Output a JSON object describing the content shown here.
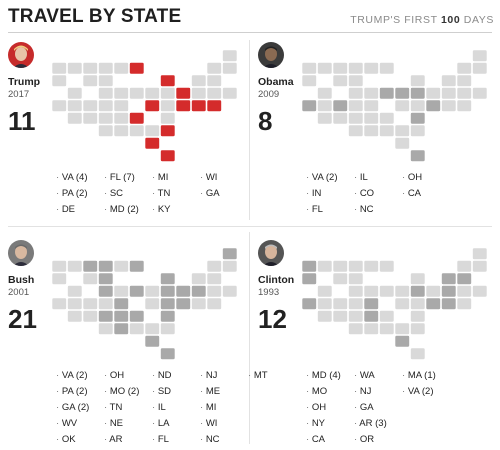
{
  "header": {
    "title": "TRAVEL BY STATE",
    "subtitle_prefix": "TRUMP'S FIRST ",
    "subtitle_number": "100",
    "subtitle_suffix": " DAYS"
  },
  "colors": {
    "base_state": "#d9d9d9",
    "trump_visited": "#d42b2b",
    "other_visited": "#a9a9a9",
    "state_border": "#ffffff"
  },
  "presidents": [
    {
      "name": "Trump",
      "year": "2017",
      "count": "11",
      "accent": "#c62b2b",
      "visited": [
        "VA (4)",
        "PA (2)",
        "DE",
        "FL (7)",
        "SC",
        "MD (2)",
        "MI",
        "TN",
        "KY",
        "WI",
        "GA"
      ]
    },
    {
      "name": "Obama",
      "year": "2009",
      "count": "8",
      "accent": "#7a7a7a",
      "visited": [
        "VA (2)",
        "IN",
        "FL",
        "IL",
        "CO",
        "NC",
        "OH",
        "CA"
      ]
    },
    {
      "name": "Bush",
      "year": "2001",
      "count": "21",
      "accent": "#7a7a7a",
      "visited": [
        "VA (2)",
        "PA (2)",
        "GA (2)",
        "WV",
        "OK",
        "OH",
        "MO (2)",
        "TN",
        "NE",
        "AR",
        "ND",
        "SD",
        "IL",
        "LA",
        "FL",
        "NJ",
        "ME",
        "MI",
        "WI",
        "NC",
        "MT"
      ]
    },
    {
      "name": "Clinton",
      "year": "1993",
      "count": "12",
      "accent": "#7a7a7a",
      "visited": [
        "MD (4)",
        "MO",
        "OH",
        "NY",
        "CA",
        "WA",
        "NJ",
        "GA",
        "AR (3)",
        "OR",
        "MA (1)",
        "VA (2)"
      ]
    }
  ]
}
